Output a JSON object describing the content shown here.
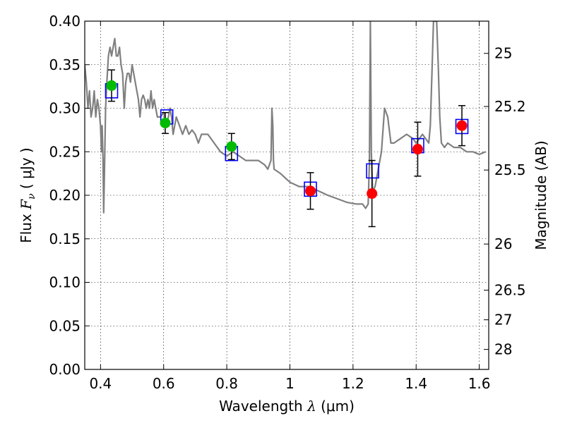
{
  "chart_data": {
    "type": "scatter",
    "xlabel": "Wavelength",
    "xlabel_symbol": "λ",
    "xlabel_unit": "(μm)",
    "ylabel_left": "Flux",
    "ylabel_symbol": "F",
    "ylabel_subscript": "ν",
    "ylabel_unit": "μJy",
    "ylabel_right": "Magnitude (AB)",
    "xlim": [
      0.35,
      1.63
    ],
    "ylim": [
      0.0,
      0.4
    ],
    "grid": true,
    "x_ticks": [
      {
        "value": 0.4,
        "label": "0.4"
      },
      {
        "value": 0.6,
        "label": "0.6"
      },
      {
        "value": 0.8,
        "label": "0.8"
      },
      {
        "value": 1.0,
        "label": "1"
      },
      {
        "value": 1.2,
        "label": "1.2"
      },
      {
        "value": 1.4,
        "label": "1.4"
      },
      {
        "value": 1.6,
        "label": "1.6"
      }
    ],
    "y_ticks": [
      {
        "value": 0.0,
        "label": "0.00"
      },
      {
        "value": 0.05,
        "label": "0.05"
      },
      {
        "value": 0.1,
        "label": "0.10"
      },
      {
        "value": 0.15,
        "label": "0.15"
      },
      {
        "value": 0.2,
        "label": "0.20"
      },
      {
        "value": 0.25,
        "label": "0.25"
      },
      {
        "value": 0.3,
        "label": "0.30"
      },
      {
        "value": 0.35,
        "label": "0.35"
      },
      {
        "value": 0.4,
        "label": "0.40"
      }
    ],
    "right_ticks": [
      {
        "flux": 0.363,
        "label": "25"
      },
      {
        "flux": 0.302,
        "label": "25.2"
      },
      {
        "flux": 0.229,
        "label": "25.5"
      },
      {
        "flux": 0.144,
        "label": "26"
      },
      {
        "flux": 0.091,
        "label": "26.5"
      },
      {
        "flux": 0.057,
        "label": "27"
      },
      {
        "flux": 0.023,
        "label": "28"
      }
    ],
    "colors": {
      "sed": "#808080",
      "model": "#0000ff",
      "optical": "#00bb00",
      "nir": "#ff0000",
      "errorbar": "#000000"
    },
    "sed_model": [
      [
        0.35,
        0.35
      ],
      [
        0.355,
        0.33
      ],
      [
        0.36,
        0.3
      ],
      [
        0.365,
        0.32
      ],
      [
        0.37,
        0.29
      ],
      [
        0.375,
        0.3
      ],
      [
        0.38,
        0.32
      ],
      [
        0.385,
        0.29
      ],
      [
        0.39,
        0.31
      ],
      [
        0.395,
        0.3
      ],
      [
        0.4,
        0.28
      ],
      [
        0.403,
        0.25
      ],
      [
        0.405,
        0.28
      ],
      [
        0.408,
        0.24
      ],
      [
        0.41,
        0.18
      ],
      [
        0.413,
        0.24
      ],
      [
        0.416,
        0.3
      ],
      [
        0.42,
        0.33
      ],
      [
        0.425,
        0.36
      ],
      [
        0.43,
        0.37
      ],
      [
        0.435,
        0.36
      ],
      [
        0.44,
        0.37
      ],
      [
        0.445,
        0.38
      ],
      [
        0.45,
        0.36
      ],
      [
        0.455,
        0.36
      ],
      [
        0.46,
        0.37
      ],
      [
        0.465,
        0.35
      ],
      [
        0.47,
        0.34
      ],
      [
        0.475,
        0.3
      ],
      [
        0.48,
        0.33
      ],
      [
        0.485,
        0.34
      ],
      [
        0.49,
        0.34
      ],
      [
        0.495,
        0.33
      ],
      [
        0.5,
        0.35
      ],
      [
        0.505,
        0.34
      ],
      [
        0.51,
        0.33
      ],
      [
        0.515,
        0.32
      ],
      [
        0.52,
        0.31
      ],
      [
        0.525,
        0.29
      ],
      [
        0.53,
        0.31
      ],
      [
        0.535,
        0.315
      ],
      [
        0.54,
        0.31
      ],
      [
        0.545,
        0.3
      ],
      [
        0.55,
        0.31
      ],
      [
        0.555,
        0.3
      ],
      [
        0.56,
        0.32
      ],
      [
        0.565,
        0.3
      ],
      [
        0.57,
        0.31
      ],
      [
        0.575,
        0.3
      ],
      [
        0.58,
        0.29
      ],
      [
        0.59,
        0.29
      ],
      [
        0.6,
        0.295
      ],
      [
        0.61,
        0.28
      ],
      [
        0.62,
        0.3
      ],
      [
        0.625,
        0.29
      ],
      [
        0.63,
        0.27
      ],
      [
        0.64,
        0.29
      ],
      [
        0.65,
        0.28
      ],
      [
        0.66,
        0.27
      ],
      [
        0.67,
        0.28
      ],
      [
        0.68,
        0.27
      ],
      [
        0.69,
        0.275
      ],
      [
        0.7,
        0.27
      ],
      [
        0.71,
        0.26
      ],
      [
        0.72,
        0.27
      ],
      [
        0.74,
        0.27
      ],
      [
        0.76,
        0.26
      ],
      [
        0.78,
        0.25
      ],
      [
        0.8,
        0.245
      ],
      [
        0.82,
        0.25
      ],
      [
        0.84,
        0.245
      ],
      [
        0.86,
        0.24
      ],
      [
        0.88,
        0.24
      ],
      [
        0.9,
        0.24
      ],
      [
        0.92,
        0.235
      ],
      [
        0.93,
        0.23
      ],
      [
        0.94,
        0.24
      ],
      [
        0.943,
        0.3
      ],
      [
        0.946,
        0.28
      ],
      [
        0.948,
        0.24
      ],
      [
        0.95,
        0.23
      ],
      [
        0.97,
        0.225
      ],
      [
        1.0,
        0.215
      ],
      [
        1.03,
        0.21
      ],
      [
        1.06,
        0.21
      ],
      [
        1.09,
        0.205
      ],
      [
        1.12,
        0.2
      ],
      [
        1.15,
        0.196
      ],
      [
        1.18,
        0.192
      ],
      [
        1.21,
        0.19
      ],
      [
        1.23,
        0.19
      ],
      [
        1.24,
        0.185
      ],
      [
        1.248,
        0.19
      ],
      [
        1.252,
        0.24
      ],
      [
        1.255,
        0.4
      ],
      [
        1.258,
        0.25
      ],
      [
        1.262,
        0.205
      ],
      [
        1.27,
        0.21
      ],
      [
        1.28,
        0.23
      ],
      [
        1.29,
        0.25
      ],
      [
        1.3,
        0.3
      ],
      [
        1.31,
        0.29
      ],
      [
        1.32,
        0.26
      ],
      [
        1.33,
        0.26
      ],
      [
        1.35,
        0.265
      ],
      [
        1.37,
        0.27
      ],
      [
        1.39,
        0.265
      ],
      [
        1.4,
        0.26
      ],
      [
        1.42,
        0.27
      ],
      [
        1.44,
        0.26
      ],
      [
        1.445,
        0.28
      ],
      [
        1.45,
        0.34
      ],
      [
        1.455,
        0.4
      ],
      [
        1.465,
        0.4
      ],
      [
        1.47,
        0.35
      ],
      [
        1.475,
        0.29
      ],
      [
        1.48,
        0.26
      ],
      [
        1.49,
        0.255
      ],
      [
        1.5,
        0.26
      ],
      [
        1.52,
        0.255
      ],
      [
        1.54,
        0.255
      ],
      [
        1.56,
        0.25
      ],
      [
        1.58,
        0.25
      ],
      [
        1.6,
        0.247
      ],
      [
        1.62,
        0.25
      ]
    ],
    "model_points": [
      {
        "x": 0.435,
        "y": 0.32
      },
      {
        "x": 0.61,
        "y": 0.29
      },
      {
        "x": 0.815,
        "y": 0.248
      },
      {
        "x": 1.065,
        "y": 0.207
      },
      {
        "x": 1.262,
        "y": 0.228
      },
      {
        "x": 1.405,
        "y": 0.257
      },
      {
        "x": 1.545,
        "y": 0.279
      }
    ],
    "observed": [
      {
        "x": 0.435,
        "y": 0.326,
        "yerr": 0.018,
        "group": "optical"
      },
      {
        "x": 0.605,
        "y": 0.283,
        "yerr": 0.012,
        "group": "optical"
      },
      {
        "x": 0.815,
        "y": 0.256,
        "yerr": 0.015,
        "group": "optical"
      },
      {
        "x": 1.065,
        "y": 0.205,
        "yerr": 0.021,
        "group": "nir"
      },
      {
        "x": 1.26,
        "y": 0.202,
        "yerr": 0.038,
        "group": "nir"
      },
      {
        "x": 1.405,
        "y": 0.253,
        "yerr": 0.031,
        "group": "nir"
      },
      {
        "x": 1.545,
        "y": 0.28,
        "yerr": 0.023,
        "group": "nir"
      }
    ]
  }
}
